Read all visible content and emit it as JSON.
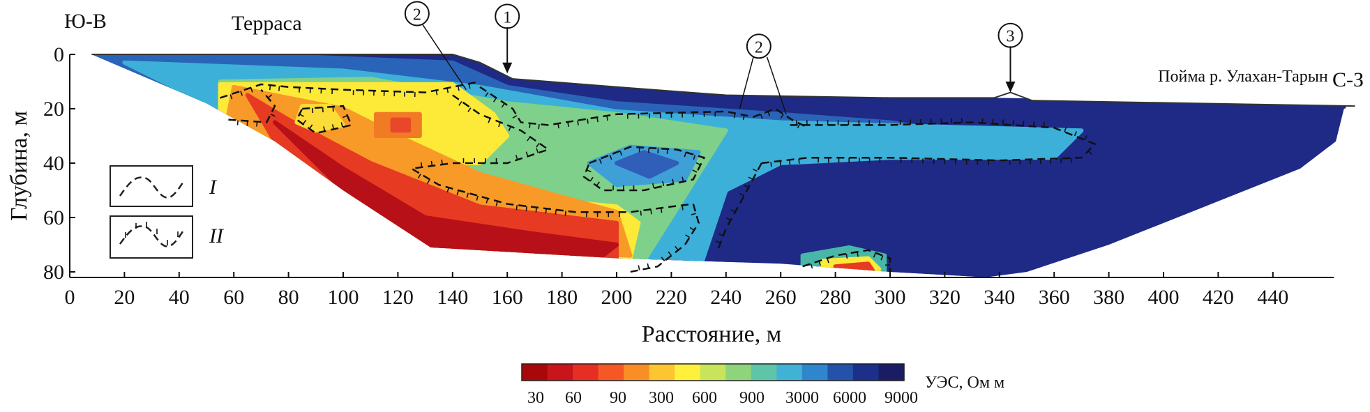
{
  "chart_data": {
    "type": "heatmap",
    "xlabel": "Расстояние, м",
    "ylabel": "Глубина, м",
    "xlim": [
      0,
      470
    ],
    "ylim": [
      0,
      80
    ],
    "y_inverted": true,
    "x_ticks": [
      0,
      20,
      40,
      60,
      80,
      100,
      120,
      140,
      160,
      180,
      200,
      220,
      240,
      260,
      280,
      300,
      320,
      340,
      360,
      380,
      400,
      420,
      440
    ],
    "y_ticks": [
      0,
      20,
      40,
      60,
      80
    ],
    "direction_left": "Ю-В",
    "direction_right": "С-З",
    "annotations": [
      {
        "text": "Терраса",
        "x": 72,
        "y": -9
      },
      {
        "text": "Пойма р. Улахан-Тарын",
        "x": 398,
        "y": 10
      },
      {
        "text": "1",
        "x": 160,
        "y": -14
      },
      {
        "text": "2",
        "x": 127,
        "y": -15
      },
      {
        "text": "2",
        "x": 252,
        "y": -3
      },
      {
        "text": "3",
        "x": 344,
        "y": -7
      }
    ],
    "legend": {
      "placement": "left",
      "entries": [
        {
          "symbol": "dashed-line",
          "label": "I"
        },
        {
          "symbol": "dashed-line-with-ticks",
          "label": "II"
        }
      ]
    },
    "colorbar": {
      "title": "УЭС, Ом м",
      "tick_labels": [
        "30",
        "60",
        "90",
        "300",
        "600",
        "900",
        "3000",
        "6000",
        "9000"
      ],
      "colors": [
        "#a8080a",
        "#c8141a",
        "#e62e22",
        "#f55824",
        "#fa8e26",
        "#fdc530",
        "#fff03c",
        "#c7e45a",
        "#8ed47a",
        "#5ec5a8",
        "#3fb2d6",
        "#2f86cc",
        "#2452aa",
        "#1c2f8a",
        "#1a1d66"
      ]
    },
    "surface_profile": [
      [
        8,
        0
      ],
      [
        140,
        0
      ],
      [
        150,
        3
      ],
      [
        162,
        9
      ],
      [
        175,
        10
      ],
      [
        200,
        12
      ],
      [
        240,
        15
      ],
      [
        300,
        16
      ],
      [
        338,
        16
      ],
      [
        344,
        14
      ],
      [
        352,
        17
      ],
      [
        470,
        19
      ]
    ],
    "bottom_profile": [
      [
        8,
        0
      ],
      [
        50,
        18
      ],
      [
        75,
        32
      ],
      [
        100,
        50
      ],
      [
        132,
        71
      ],
      [
        200,
        75
      ],
      [
        260,
        77
      ],
      [
        300,
        80
      ],
      [
        335,
        82
      ],
      [
        350,
        80
      ],
      [
        380,
        70
      ],
      [
        410,
        58
      ],
      [
        450,
        42
      ],
      [
        463,
        32
      ],
      [
        466,
        20
      ]
    ],
    "fill_regions": [
      {
        "color": "#1e2a86",
        "points": [
          [
            8,
            0
          ],
          [
            140,
            0
          ],
          [
            162,
            9
          ],
          [
            200,
            12
          ],
          [
            300,
            16
          ],
          [
            352,
            17
          ],
          [
            466,
            19
          ],
          [
            463,
            32
          ],
          [
            450,
            42
          ],
          [
            410,
            58
          ],
          [
            380,
            70
          ],
          [
            350,
            80
          ],
          [
            335,
            82
          ],
          [
            300,
            80
          ],
          [
            200,
            75
          ],
          [
            132,
            71
          ],
          [
            100,
            50
          ],
          [
            75,
            32
          ],
          [
            50,
            18
          ]
        ]
      },
      {
        "color": "#2a64b8",
        "points": [
          [
            8,
            0
          ],
          [
            90,
            1
          ],
          [
            140,
            3
          ],
          [
            160,
            12
          ],
          [
            200,
            18
          ],
          [
            260,
            22
          ],
          [
            300,
            25
          ],
          [
            320,
            28
          ],
          [
            300,
            34
          ],
          [
            260,
            40
          ],
          [
            230,
            46
          ],
          [
            225,
            62
          ],
          [
            215,
            80
          ],
          [
            132,
            71
          ],
          [
            100,
            50
          ],
          [
            75,
            32
          ],
          [
            50,
            18
          ]
        ]
      },
      {
        "color": "#3cb0d8",
        "points": [
          [
            20,
            3
          ],
          [
            100,
            6
          ],
          [
            150,
            12
          ],
          [
            200,
            21
          ],
          [
            260,
            25
          ],
          [
            370,
            28
          ],
          [
            360,
            38
          ],
          [
            300,
            38
          ],
          [
            260,
            40
          ],
          [
            240,
            50
          ],
          [
            230,
            80
          ],
          [
            132,
            71
          ],
          [
            100,
            50
          ],
          [
            75,
            32
          ],
          [
            50,
            18
          ]
        ]
      },
      {
        "color": "#7fd08a",
        "points": [
          [
            55,
            10
          ],
          [
            110,
            9
          ],
          [
            160,
            18
          ],
          [
            200,
            22
          ],
          [
            240,
            28
          ],
          [
            230,
            44
          ],
          [
            220,
            60
          ],
          [
            210,
            76
          ],
          [
            132,
            71
          ],
          [
            100,
            50
          ],
          [
            75,
            32
          ],
          [
            55,
            20
          ]
        ]
      },
      {
        "color": "#3fa0d8",
        "points": [
          [
            190,
            40
          ],
          [
            205,
            34
          ],
          [
            230,
            36
          ],
          [
            225,
            46
          ],
          [
            200,
            48
          ]
        ]
      },
      {
        "color": "#2f5fb8",
        "points": [
          [
            200,
            40
          ],
          [
            210,
            36
          ],
          [
            222,
            40
          ],
          [
            212,
            45
          ]
        ]
      },
      {
        "color": "#fde938",
        "points": [
          [
            55,
            11
          ],
          [
            140,
            11
          ],
          [
            155,
            22
          ],
          [
            160,
            30
          ],
          [
            150,
            40
          ],
          [
            140,
            40
          ],
          [
            135,
            46
          ],
          [
            160,
            52
          ],
          [
            200,
            56
          ],
          [
            208,
            62
          ],
          [
            205,
            75
          ],
          [
            132,
            71
          ],
          [
            100,
            50
          ],
          [
            75,
            32
          ],
          [
            55,
            20
          ]
        ]
      },
      {
        "color": "#f89a28",
        "points": [
          [
            60,
            12
          ],
          [
            80,
            16
          ],
          [
            100,
            20
          ],
          [
            120,
            30
          ],
          [
            150,
            44
          ],
          [
            200,
            58
          ],
          [
            205,
            74
          ],
          [
            132,
            71
          ],
          [
            100,
            50
          ],
          [
            75,
            32
          ],
          [
            58,
            22
          ]
        ]
      },
      {
        "color": "#e63a22",
        "points": [
          [
            65,
            15
          ],
          [
            80,
            24
          ],
          [
            110,
            40
          ],
          [
            150,
            56
          ],
          [
            200,
            62
          ],
          [
            200,
            75
          ],
          [
            132,
            71
          ],
          [
            100,
            50
          ],
          [
            75,
            32
          ]
        ]
      },
      {
        "color": "#b81018",
        "points": [
          [
            75,
            25
          ],
          [
            100,
            42
          ],
          [
            130,
            60
          ],
          [
            170,
            66
          ],
          [
            200,
            70
          ],
          [
            195,
            74
          ],
          [
            132,
            71
          ],
          [
            100,
            50
          ]
        ]
      },
      {
        "color": "#f17a25",
        "points": [
          [
            112,
            22
          ],
          [
            128,
            22
          ],
          [
            128,
            30
          ],
          [
            112,
            30
          ]
        ]
      },
      {
        "color": "#e8472a",
        "points": [
          [
            118,
            24
          ],
          [
            124,
            24
          ],
          [
            124,
            28
          ],
          [
            118,
            28
          ]
        ]
      },
      {
        "color": "#fcdc36",
        "points": [
          [
            85,
            19
          ],
          [
            95,
            19
          ],
          [
            100,
            26
          ],
          [
            90,
            28
          ],
          [
            83,
            25
          ]
        ]
      },
      {
        "color": "#48b7a8",
        "points": [
          [
            268,
            74
          ],
          [
            285,
            71
          ],
          [
            298,
            74
          ],
          [
            298,
            80
          ],
          [
            268,
            79
          ]
        ]
      },
      {
        "color": "#fde938",
        "points": [
          [
            275,
            76
          ],
          [
            292,
            75
          ],
          [
            296,
            79
          ],
          [
            275,
            80
          ]
        ]
      },
      {
        "color": "#e63a22",
        "points": [
          [
            280,
            78
          ],
          [
            292,
            77
          ],
          [
            294,
            80
          ],
          [
            280,
            80
          ]
        ]
      }
    ],
    "contours_I": [
      [
        [
          55,
          16
        ],
        [
          70,
          11
        ],
        [
          80,
          12
        ],
        [
          100,
          13
        ],
        [
          130,
          14
        ],
        [
          150,
          10
        ]
      ],
      [
        [
          140,
          15
        ],
        [
          150,
          22
        ],
        [
          165,
          28
        ],
        [
          175,
          35
        ],
        [
          160,
          40
        ],
        [
          140,
          40
        ],
        [
          125,
          42
        ],
        [
          135,
          48
        ],
        [
          160,
          55
        ],
        [
          185,
          58
        ],
        [
          205,
          58
        ],
        [
          220,
          56
        ],
        [
          228,
          55
        ],
        [
          230,
          62
        ],
        [
          225,
          70
        ],
        [
          215,
          78
        ],
        [
          205,
          80
        ]
      ],
      [
        [
          190,
          40
        ],
        [
          205,
          34
        ],
        [
          222,
          35
        ],
        [
          232,
          38
        ],
        [
          228,
          46
        ],
        [
          210,
          50
        ],
        [
          195,
          50
        ],
        [
          188,
          45
        ],
        [
          190,
          40
        ]
      ],
      [
        [
          253,
          40
        ],
        [
          245,
          55
        ],
        [
          240,
          64
        ],
        [
          237,
          72
        ]
      ],
      [
        [
          253,
          40
        ],
        [
          270,
          38
        ],
        [
          300,
          38
        ],
        [
          340,
          39
        ],
        [
          370,
          38
        ],
        [
          375,
          33
        ],
        [
          360,
          27
        ],
        [
          330,
          25
        ],
        [
          300,
          26
        ],
        [
          262,
          26
        ]
      ],
      [
        [
          85,
          20
        ],
        [
          100,
          19
        ],
        [
          103,
          26
        ],
        [
          90,
          29
        ],
        [
          83,
          24
        ],
        [
          85,
          20
        ]
      ],
      [
        [
          268,
          78
        ],
        [
          280,
          74
        ],
        [
          292,
          72
        ],
        [
          300,
          75
        ],
        [
          300,
          80
        ]
      ]
    ],
    "contours_II": [
      [
        [
          58,
          24
        ],
        [
          72,
          25
        ],
        [
          75,
          19
        ],
        [
          70,
          13
        ]
      ],
      [
        [
          150,
          12
        ],
        [
          162,
          20
        ],
        [
          165,
          25
        ],
        [
          175,
          26
        ],
        [
          200,
          22
        ],
        [
          240,
          21
        ],
        [
          250,
          23
        ],
        [
          258,
          20
        ],
        [
          264,
          24
        ],
        [
          270,
          27
        ]
      ]
    ]
  }
}
